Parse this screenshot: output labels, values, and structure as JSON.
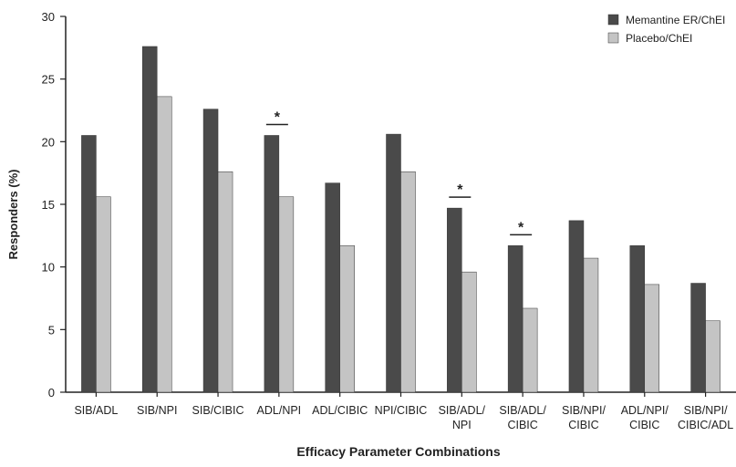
{
  "chart_data": {
    "type": "bar",
    "xlabel": "Efficacy Parameter Combinations",
    "ylabel": "Responders (%)",
    "ylim": [
      0,
      30
    ],
    "yticks": [
      0,
      5,
      10,
      15,
      20,
      25,
      30
    ],
    "grid": false,
    "legend_position": "top-right",
    "categories": [
      [
        "SIB/ADL"
      ],
      [
        "SIB/NPI"
      ],
      [
        "SIB/CIBIC"
      ],
      [
        "ADL/NPI"
      ],
      [
        "ADL/CIBIC"
      ],
      [
        "NPI/CIBIC"
      ],
      [
        "SIB/ADL/",
        "NPI"
      ],
      [
        "SIB/ADL/",
        "CIBIC"
      ],
      [
        "SIB/NPI/",
        "CIBIC"
      ],
      [
        "ADL/NPI/",
        "CIBIC"
      ],
      [
        "SIB/NPI/",
        "CIBIC/ADL"
      ]
    ],
    "series": [
      {
        "name": "Memantine ER/ChEI",
        "color": "#4a4a4a",
        "values": [
          20.5,
          27.6,
          22.6,
          20.5,
          16.7,
          20.6,
          14.7,
          11.7,
          13.7,
          11.7,
          8.7
        ]
      },
      {
        "name": "Placebo/ChEI",
        "color": "#c4c4c4",
        "values": [
          15.6,
          23.6,
          17.6,
          15.6,
          11.7,
          17.6,
          9.6,
          6.7,
          10.7,
          8.6,
          5.7
        ]
      }
    ],
    "annotations": [
      {
        "category_index": 3,
        "text": "*"
      },
      {
        "category_index": 6,
        "text": "*"
      },
      {
        "category_index": 7,
        "text": "*"
      }
    ]
  }
}
